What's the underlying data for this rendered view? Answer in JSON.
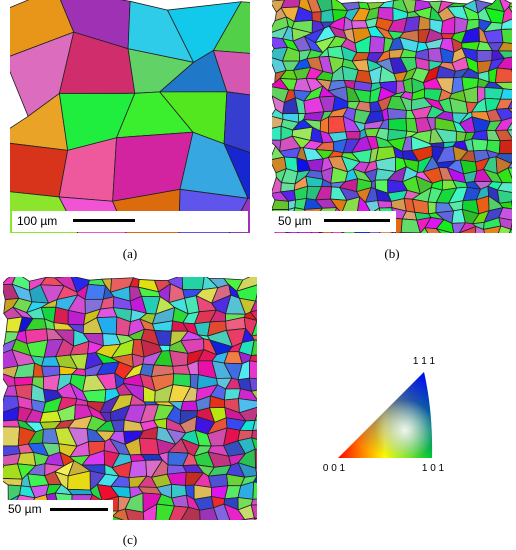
{
  "panels": [
    {
      "label": "(a)",
      "scale_bar": "100 µm"
    },
    {
      "label": "(b)",
      "scale_bar": "50 µm"
    },
    {
      "label": "(c)",
      "scale_bar": "50 µm"
    }
  ],
  "legend": {
    "top": "1 1 1",
    "left": "0 0 1",
    "right": "1 0 1"
  }
}
